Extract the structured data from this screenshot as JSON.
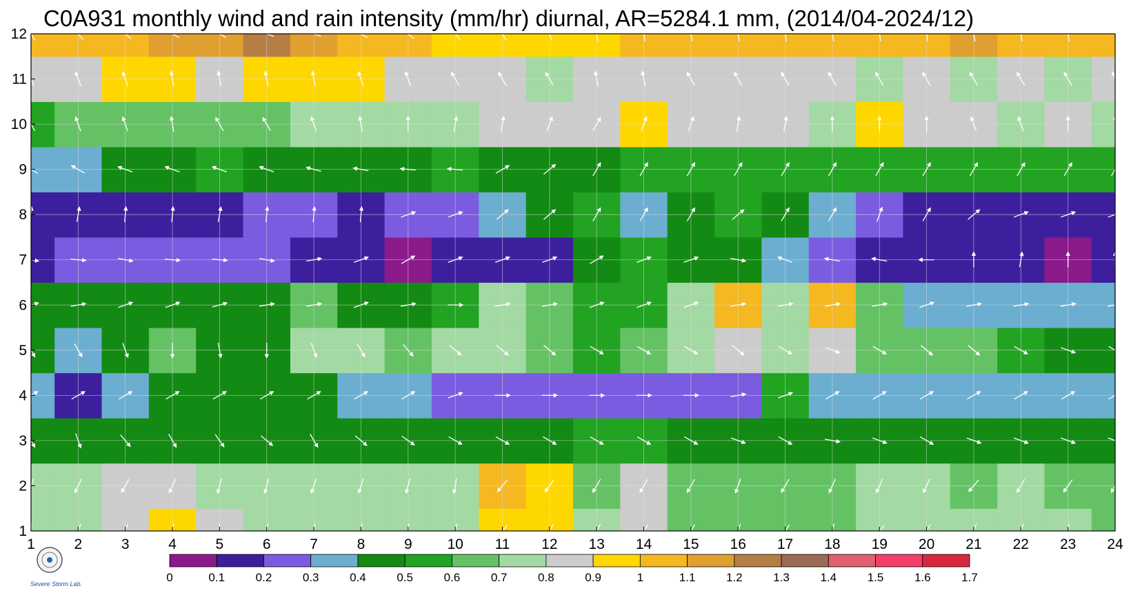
{
  "title": "C0A931 monthly wind and rain intensity (mm/hr) diurnal, AR=5284.1 mm, (2014/04-2024/12)",
  "logo_text": "Severe Storm Lab.",
  "chart_data": {
    "type": "heatmap",
    "title": "C0A931 monthly wind and rain intensity (mm/hr) diurnal, AR=5284.1 mm, (2014/04-2024/12)",
    "x": [
      1,
      2,
      3,
      4,
      5,
      6,
      7,
      8,
      9,
      10,
      11,
      12,
      13,
      14,
      15,
      16,
      17,
      18,
      19,
      20,
      21,
      22,
      23,
      24
    ],
    "y": [
      1,
      2,
      3,
      4,
      5,
      6,
      7,
      8,
      9,
      10,
      11,
      12
    ],
    "xlim": [
      1,
      24
    ],
    "ylim": [
      1,
      12
    ],
    "grid": true,
    "colorbar": {
      "ticks": [
        "0",
        "0.1",
        "0.2",
        "0.3",
        "0.4",
        "0.5",
        "0.6",
        "0.7",
        "0.8",
        "0.9",
        "1",
        "1.1",
        "1.2",
        "1.3",
        "1.4",
        "1.5",
        "1.6",
        "1.7"
      ],
      "levels": [
        0,
        0.1,
        0.2,
        0.3,
        0.4,
        0.5,
        0.6,
        0.7,
        0.8,
        0.9,
        1.0,
        1.1,
        1.2,
        1.3,
        1.4,
        1.5,
        1.6,
        1.7
      ],
      "colors": [
        "#8b1a8b",
        "#3d1f9e",
        "#7b5ce0",
        "#6baed0",
        "#138a13",
        "#22a322",
        "#64c264",
        "#a3d9a3",
        "#cccccc",
        "#ffd700",
        "#f5b820",
        "#e0a030",
        "#b57e45",
        "#9c6b55",
        "#e06070",
        "#f0406a",
        "#d82840"
      ]
    },
    "z": [
      [
        0.75,
        0.72,
        0.85,
        0.95,
        0.85,
        0.75,
        0.72,
        0.73,
        0.72,
        0.7,
        0.92,
        0.95,
        0.72,
        0.85,
        0.65,
        0.65,
        0.66,
        0.66,
        0.75,
        0.75,
        0.72,
        0.7,
        0.7,
        0.68
      ],
      [
        0.75,
        0.75,
        0.85,
        0.82,
        0.75,
        0.72,
        0.72,
        0.72,
        0.7,
        0.72,
        1.05,
        0.95,
        0.68,
        0.85,
        0.65,
        0.62,
        0.64,
        0.64,
        0.75,
        0.72,
        0.68,
        0.7,
        0.66,
        0.68
      ],
      [
        0.45,
        0.42,
        0.45,
        0.45,
        0.45,
        0.45,
        0.45,
        0.43,
        0.42,
        0.42,
        0.42,
        0.45,
        0.55,
        0.5,
        0.45,
        0.45,
        0.45,
        0.45,
        0.42,
        0.43,
        0.45,
        0.45,
        0.45,
        0.45
      ],
      [
        0.35,
        0.15,
        0.35,
        0.42,
        0.42,
        0.45,
        0.42,
        0.35,
        0.3,
        0.2,
        0.28,
        0.2,
        0.25,
        0.25,
        0.22,
        0.25,
        0.5,
        0.35,
        0.35,
        0.35,
        0.35,
        0.35,
        0.35,
        0.35
      ],
      [
        0.45,
        0.3,
        0.45,
        0.65,
        0.45,
        0.45,
        0.72,
        0.75,
        0.65,
        0.75,
        0.7,
        0.65,
        0.5,
        0.6,
        0.75,
        0.85,
        0.75,
        0.85,
        0.65,
        0.6,
        0.65,
        0.55,
        0.45,
        0.45
      ],
      [
        0.45,
        0.45,
        0.45,
        0.45,
        0.4,
        0.45,
        0.6,
        0.45,
        0.4,
        0.55,
        0.7,
        0.65,
        0.5,
        0.55,
        0.75,
        1.05,
        0.75,
        1.0,
        0.65,
        0.35,
        0.35,
        0.35,
        0.3,
        0.3
      ],
      [
        0.15,
        0.2,
        0.25,
        0.25,
        0.25,
        0.22,
        0.12,
        0.1,
        0.08,
        0.12,
        0.12,
        0.15,
        0.45,
        0.5,
        0.45,
        0.45,
        0.35,
        0.25,
        0.15,
        0.12,
        0.1,
        0.1,
        0.05,
        0.12
      ],
      [
        0.15,
        0.15,
        0.15,
        0.15,
        0.15,
        0.22,
        0.25,
        0.15,
        0.22,
        0.28,
        0.3,
        0.4,
        0.5,
        0.35,
        0.45,
        0.55,
        0.45,
        0.3,
        0.25,
        0.15,
        0.15,
        0.15,
        0.15,
        0.15
      ],
      [
        0.35,
        0.35,
        0.45,
        0.45,
        0.5,
        0.45,
        0.45,
        0.45,
        0.45,
        0.5,
        0.45,
        0.45,
        0.45,
        0.5,
        0.5,
        0.55,
        0.5,
        0.55,
        0.55,
        0.55,
        0.55,
        0.55,
        0.55,
        0.55
      ],
      [
        0.55,
        0.6,
        0.62,
        0.65,
        0.62,
        0.65,
        0.72,
        0.7,
        0.72,
        0.75,
        0.85,
        0.85,
        0.8,
        0.92,
        0.8,
        0.8,
        0.8,
        0.75,
        0.95,
        0.82,
        0.8,
        0.75,
        0.8,
        0.7
      ],
      [
        0.85,
        0.85,
        0.95,
        0.95,
        0.85,
        0.95,
        0.95,
        0.95,
        0.85,
        0.85,
        0.8,
        0.75,
        0.85,
        0.85,
        0.85,
        0.85,
        0.85,
        0.8,
        0.75,
        0.8,
        0.75,
        0.8,
        0.75,
        0.82
      ],
      [
        1.05,
        1.05,
        1.05,
        1.1,
        1.15,
        1.25,
        1.1,
        1.0,
        1.05,
        0.95,
        0.95,
        0.95,
        0.95,
        1.0,
        1.0,
        1.0,
        1.0,
        1.0,
        1.0,
        1.0,
        1.1,
        1.0,
        1.0,
        1.05
      ]
    ],
    "wind_angle_deg": [
      [
        265,
        250,
        250,
        260,
        270,
        260,
        260,
        262,
        262,
        255,
        230,
        240,
        240,
        235,
        240,
        250,
        235,
        255,
        230,
        240,
        250,
        250,
        260,
        250
      ],
      [
        250,
        245,
        240,
        245,
        255,
        255,
        250,
        252,
        255,
        260,
        230,
        235,
        240,
        240,
        240,
        250,
        240,
        245,
        245,
        245,
        230,
        240,
        235,
        240
      ],
      [
        300,
        290,
        310,
        300,
        305,
        320,
        300,
        320,
        325,
        330,
        330,
        330,
        330,
        330,
        330,
        340,
        330,
        350,
        340,
        330,
        340,
        340,
        340,
        340
      ],
      [
        30,
        30,
        30,
        30,
        30,
        30,
        30,
        30,
        30,
        20,
        0,
        0,
        0,
        0,
        0,
        10,
        20,
        30,
        30,
        30,
        30,
        30,
        30,
        30
      ],
      [
        300,
        300,
        290,
        270,
        280,
        270,
        290,
        300,
        310,
        320,
        320,
        320,
        330,
        330,
        330,
        320,
        330,
        340,
        330,
        320,
        320,
        330,
        340,
        330
      ],
      [
        15,
        10,
        20,
        20,
        15,
        10,
        10,
        20,
        10,
        0,
        10,
        10,
        20,
        20,
        20,
        10,
        10,
        10,
        10,
        20,
        10,
        10,
        10,
        10
      ],
      [
        350,
        355,
        350,
        355,
        355,
        350,
        10,
        20,
        30,
        20,
        20,
        20,
        30,
        20,
        20,
        350,
        160,
        170,
        170,
        180,
        90,
        80,
        90,
        90
      ],
      [
        85,
        80,
        85,
        85,
        80,
        85,
        85,
        85,
        20,
        20,
        40,
        40,
        60,
        60,
        60,
        40,
        60,
        60,
        70,
        60,
        40,
        20,
        20,
        20
      ],
      [
        150,
        150,
        160,
        160,
        160,
        160,
        165,
        170,
        175,
        175,
        30,
        40,
        60,
        60,
        60,
        60,
        60,
        60,
        60,
        60,
        60,
        60,
        60,
        60
      ],
      [
        120,
        110,
        110,
        100,
        120,
        120,
        110,
        100,
        90,
        80,
        80,
        70,
        60,
        70,
        70,
        80,
        80,
        90,
        90,
        90,
        110,
        110,
        90,
        90
      ],
      [
        110,
        110,
        110,
        100,
        100,
        100,
        100,
        110,
        110,
        120,
        120,
        120,
        100,
        100,
        120,
        120,
        120,
        120,
        120,
        120,
        120,
        120,
        120,
        110
      ],
      [
        120,
        130,
        140,
        150,
        150,
        160,
        160,
        150,
        140,
        130,
        120,
        110,
        100,
        100,
        100,
        100,
        100,
        100,
        100,
        100,
        100,
        100,
        100,
        100
      ]
    ]
  }
}
